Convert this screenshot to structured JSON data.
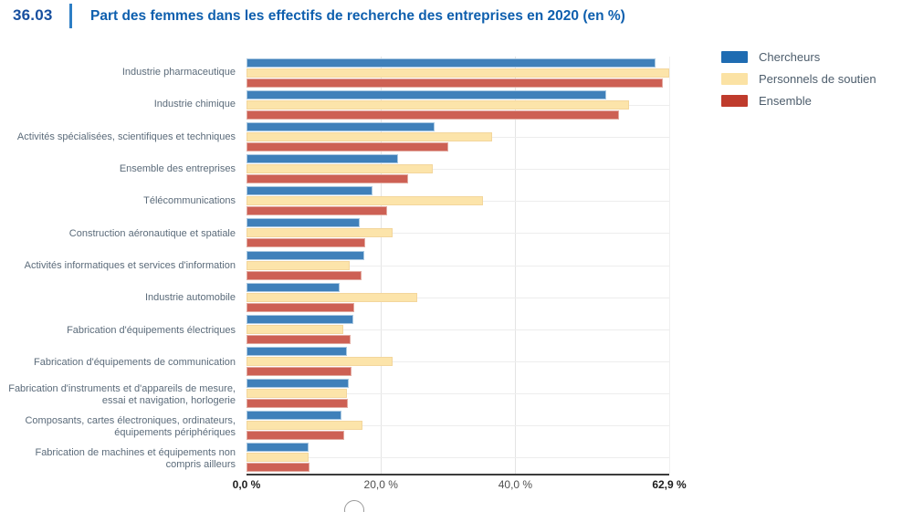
{
  "header": {
    "figure_number": "36.03",
    "title": "Part des femmes dans les effectifs de recherche des entreprises en 2020 (en %)"
  },
  "chart_data": {
    "type": "bar",
    "orientation": "horizontal",
    "title": "Part des femmes dans les effectifs de recherche des entreprises en 2020 (en %)",
    "categories": [
      "Industrie pharmaceutique",
      "Industrie chimique",
      "Activités spécialisées, scientifiques et techniques",
      "Ensemble des entreprises",
      "Télécommunications",
      "Construction aéronautique et spatiale",
      "Activités informatiques et services d'information",
      "Industrie automobile",
      "Fabrication d'équipements électriques",
      "Fabrication d'équipements de communication",
      "Fabrication d'instruments et d'appareils de mesure, essai et navigation, horlogerie",
      "Composants, cartes électroniques, ordinateurs, équipements périphériques",
      "Fabrication de machines et équipements non compris ailleurs"
    ],
    "series": [
      {
        "name": "Chercheurs",
        "legend_color": "#1f6cb2",
        "bar_color": "#3f80ba",
        "bar_border": "#a9c8e1",
        "values": [
          60.9,
          53.5,
          28.0,
          22.6,
          18.8,
          16.9,
          17.5,
          13.9,
          15.9,
          14.9,
          15.2,
          14.1,
          9.3
        ]
      },
      {
        "name": "Personnels de soutien",
        "legend_color": "#fbe2a4",
        "bar_color": "#fce4aa",
        "bar_border": "#f3d69c",
        "values": [
          62.9,
          56.9,
          36.5,
          27.7,
          35.2,
          21.8,
          15.4,
          25.4,
          14.4,
          21.7,
          14.9,
          17.2,
          9.3
        ]
      },
      {
        "name": "Ensemble",
        "legend_color": "#bf3b2c",
        "bar_color": "#cd6054",
        "bar_border": "#e2a99f",
        "values": [
          61.9,
          55.4,
          30.0,
          24.1,
          20.9,
          17.7,
          17.1,
          16.0,
          15.5,
          15.6,
          15.1,
          14.6,
          9.4
        ]
      }
    ],
    "xlim": [
      0,
      62.9
    ],
    "x_ticks": [
      {
        "value": 0,
        "label": "0,0 %",
        "bold": true
      },
      {
        "value": 20,
        "label": "20,0 %",
        "bold": false
      },
      {
        "value": 40,
        "label": "40,0 %",
        "bold": false
      },
      {
        "value": 62.9,
        "label": "62,9 %",
        "bold": true
      }
    ],
    "gridlines": {
      "vertical_at": [
        20,
        40
      ],
      "right_edge_at": 62.9,
      "horizontal_per_category": true
    },
    "legend_position": "top-right"
  }
}
